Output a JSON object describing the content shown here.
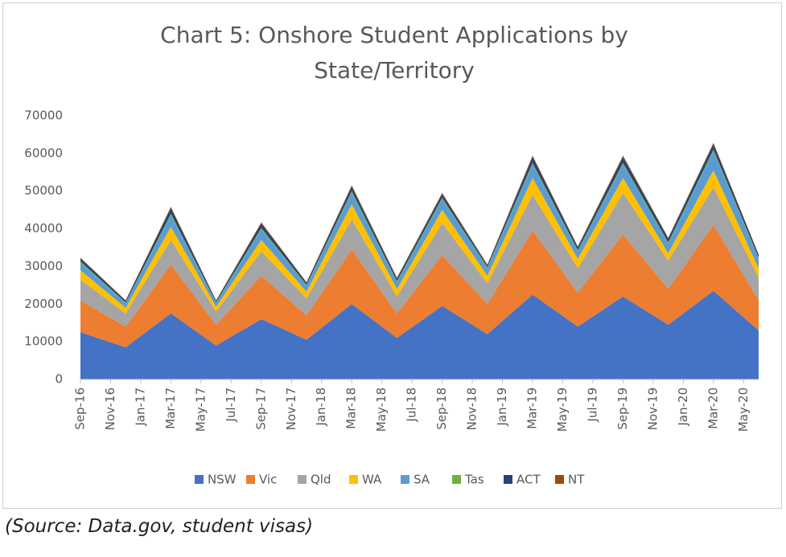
{
  "chart_data": {
    "type": "stacked_area",
    "title": "Chart 5: Onshore Student Applications by State/Territory",
    "source": "(Source: Data.gov, student visas)",
    "x": [
      0,
      3,
      6,
      9,
      12,
      15,
      18,
      21,
      24,
      27,
      30,
      33,
      36,
      39,
      42,
      45
    ],
    "xlim": [
      0,
      45
    ],
    "xticks": [
      {
        "value": 0,
        "label": "Sep-16"
      },
      {
        "value": 2,
        "label": "Nov-16"
      },
      {
        "value": 4,
        "label": "Jan-17"
      },
      {
        "value": 6,
        "label": "Mar-17"
      },
      {
        "value": 8,
        "label": "May-17"
      },
      {
        "value": 10,
        "label": "Jul-17"
      },
      {
        "value": 12,
        "label": "Sep-17"
      },
      {
        "value": 14,
        "label": "Nov-17"
      },
      {
        "value": 16,
        "label": "Jan-18"
      },
      {
        "value": 18,
        "label": "Mar-18"
      },
      {
        "value": 20,
        "label": "May-18"
      },
      {
        "value": 22,
        "label": "Jul-18"
      },
      {
        "value": 24,
        "label": "Sep-18"
      },
      {
        "value": 26,
        "label": "Nov-18"
      },
      {
        "value": 28,
        "label": "Jan-19"
      },
      {
        "value": 30,
        "label": "Mar-19"
      },
      {
        "value": 32,
        "label": "May-19"
      },
      {
        "value": 34,
        "label": "Jul-19"
      },
      {
        "value": 36,
        "label": "Sep-19"
      },
      {
        "value": 38,
        "label": "Nov-19"
      },
      {
        "value": 40,
        "label": "Jan-20"
      },
      {
        "value": 42,
        "label": "Mar-20"
      },
      {
        "value": 44,
        "label": "May-20"
      }
    ],
    "ylim": [
      0,
      70000
    ],
    "yticks": [
      0,
      10000,
      20000,
      30000,
      40000,
      50000,
      60000,
      70000
    ],
    "grid": false,
    "legend": "bottom",
    "series": [
      {
        "name": "NSW",
        "color": "#4472c4",
        "values": [
          12500,
          8500,
          17500,
          9000,
          16000,
          10500,
          20000,
          11000,
          19500,
          12000,
          22500,
          14000,
          22000,
          14500,
          23500,
          13000
        ]
      },
      {
        "name": "Vic",
        "color": "#ed7d31",
        "values": [
          8500,
          5500,
          13000,
          5500,
          11500,
          6500,
          14500,
          6500,
          13500,
          8000,
          17000,
          9000,
          16500,
          9500,
          17500,
          8000
        ]
      },
      {
        "name": "Qld",
        "color": "#a5a5a5",
        "values": [
          5500,
          3500,
          6500,
          3500,
          6500,
          4500,
          8000,
          4500,
          8500,
          5500,
          9500,
          6500,
          11000,
          7500,
          10000,
          6000
        ]
      },
      {
        "name": "WA",
        "color": "#ffc000",
        "values": [
          2500,
          1500,
          3500,
          1300,
          3000,
          1800,
          4000,
          2000,
          3500,
          2000,
          4500,
          2500,
          4000,
          2000,
          4500,
          2500
        ]
      },
      {
        "name": "SA",
        "color": "#5b9bd5",
        "values": [
          2000,
          1200,
          3000,
          1000,
          2800,
          1500,
          3000,
          1800,
          2800,
          2000,
          3500,
          2000,
          3500,
          2500,
          5000,
          2500
        ]
      },
      {
        "name": "Tas",
        "color": "#70ad47",
        "values": [
          300,
          200,
          500,
          200,
          400,
          300,
          500,
          300,
          400,
          300,
          500,
          300,
          500,
          400,
          500,
          300
        ]
      },
      {
        "name": "ACT",
        "color": "#264478",
        "values": [
          800,
          500,
          1500,
          400,
          1200,
          600,
          1200,
          700,
          1000,
          500,
          1500,
          800,
          1500,
          1000,
          1500,
          700
        ]
      },
      {
        "name": "NT",
        "color": "#9e480e",
        "values": [
          200,
          100,
          300,
          100,
          300,
          100,
          300,
          200,
          300,
          200,
          400,
          200,
          400,
          200,
          300,
          200
        ]
      }
    ]
  }
}
